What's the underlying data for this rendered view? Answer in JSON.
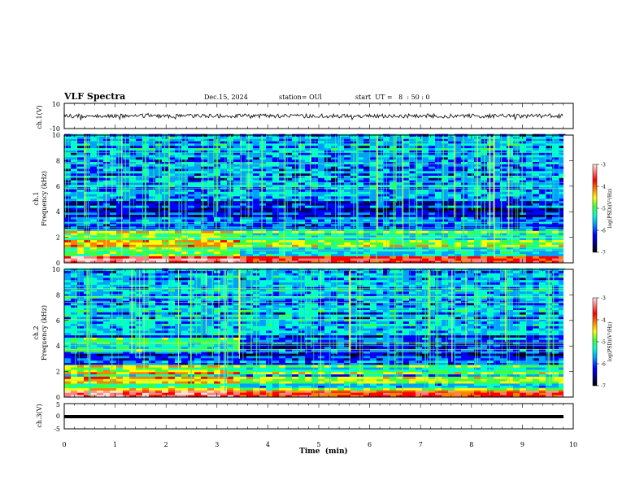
{
  "header": {
    "title": "VLF Spectra",
    "date": "Dec.15, 2024",
    "station": "station= OUl",
    "start": "start  UT =   8  : 50 : 0"
  },
  "chart_data": [
    {
      "type": "line",
      "ylabel": "ch.1(V)",
      "ylim": [
        -10,
        10
      ],
      "yticks": [
        "10",
        "-10"
      ],
      "xlim": [
        0,
        9.85
      ],
      "series": [
        {
          "name": "",
          "values_desc": "noisy waveform around 0 V"
        }
      ]
    },
    {
      "type": "heatmap",
      "ylabel": "ch.1\nFrequency  (kHz)",
      "ylabel_line1": "ch.1",
      "ylabel_line2": "Frequency  (kHz)",
      "ylim": [
        0,
        10
      ],
      "yticks": [
        "0",
        "2",
        "4",
        "6",
        "8",
        "10"
      ],
      "colorbar": {
        "label": "log(PSD)(V²/Hz)",
        "ticks": [
          "-3",
          "-4",
          "-5",
          "-6",
          "-7"
        ],
        "range": [
          -7,
          -3
        ]
      }
    },
    {
      "type": "heatmap",
      "ylabel_line1": "ch.2",
      "ylabel_line2": "Frequency  (kHz)",
      "ylim": [
        0,
        10
      ],
      "yticks": [
        "0",
        "2",
        "4",
        "6",
        "8",
        "10"
      ],
      "colorbar": {
        "label": "log(PSD)(V²/Hz)",
        "ticks": [
          "-3",
          "-4",
          "-5",
          "-6",
          "-7"
        ],
        "range": [
          -7,
          -3
        ]
      }
    },
    {
      "type": "line",
      "ylabel": "ch.3(V)",
      "ylim": [
        -5,
        5
      ],
      "yticks": [
        "5",
        "0",
        "-5"
      ],
      "series": [
        {
          "name": "",
          "values": [
            -0.3,
            -0.3
          ]
        }
      ]
    }
  ],
  "xaxis": {
    "label": "Time  (min)",
    "ticks": [
      "0",
      "1",
      "2",
      "3",
      "4",
      "5",
      "6",
      "7",
      "8",
      "9",
      "10"
    ],
    "range": [
      0,
      10
    ]
  },
  "colors": {
    "frame": "#000000",
    "trace": "#000000",
    "colormap": [
      "#000000",
      "#00006a",
      "#0000ff",
      "#00a0ff",
      "#00ffd0",
      "#40ff40",
      "#ffff00",
      "#ff8000",
      "#ff0000",
      "#ff8080",
      "#ffe0e0"
    ]
  }
}
